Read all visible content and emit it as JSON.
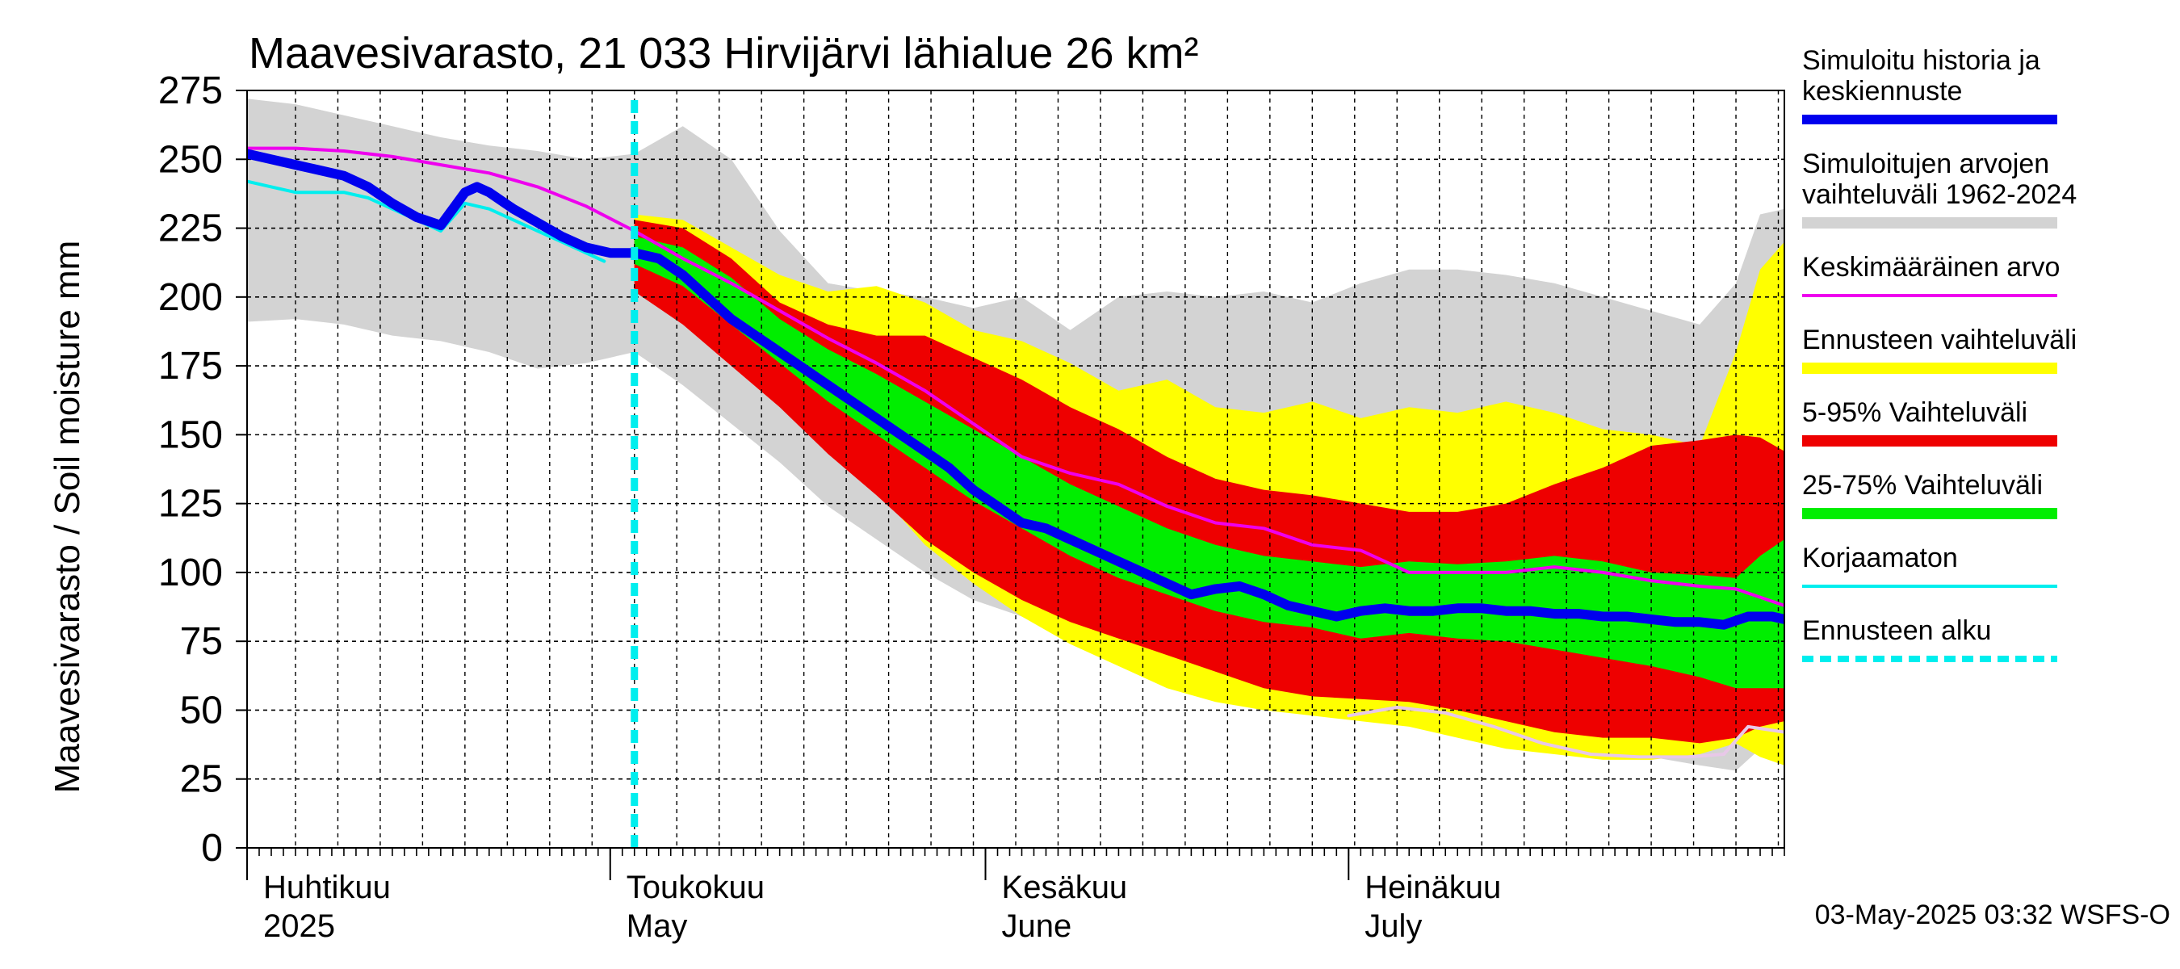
{
  "chart_data": {
    "type": "area",
    "title": "Maavesivarasto, 21 033 Hirvijärvi lähialue 26 km²",
    "ylabel": "Maavesivarasto / Soil moisture   mm",
    "ylim": [
      0,
      275
    ],
    "yticks": [
      0,
      25,
      50,
      75,
      100,
      125,
      150,
      175,
      200,
      225,
      250,
      275
    ],
    "xrange_days": [
      0,
      127
    ],
    "month_labels": [
      {
        "day": 0,
        "fi": "Huhtikuu",
        "en": "2025"
      },
      {
        "day": 30,
        "fi": "Toukokuu",
        "en": "May"
      },
      {
        "day": 61,
        "fi": "Kesäkuu",
        "en": "June"
      },
      {
        "day": 91,
        "fi": "Heinäkuu",
        "en": "July"
      }
    ],
    "forecast_start_day": 32,
    "timestamp": "03-May-2025 03:32 WSFS-O",
    "legend": [
      {
        "key": "history",
        "label": [
          "Simuloitu historia ja",
          "keskiennuste"
        ],
        "color": "#0000ee",
        "style": "thick"
      },
      {
        "key": "range_hist",
        "label": [
          "Simuloitujen arvojen",
          "vaihteluväli 1962-2024"
        ],
        "color": "#d3d3d3",
        "style": "band"
      },
      {
        "key": "mean",
        "label": [
          "Keskimääräinen arvo"
        ],
        "color": "#ee00ee",
        "style": "line"
      },
      {
        "key": "fc_range",
        "label": [
          "Ennusteen vaihteluväli"
        ],
        "color": "#ffff00",
        "style": "band"
      },
      {
        "key": "p5_95",
        "label": [
          "5-95% Vaihteluväli"
        ],
        "color": "#ee0000",
        "style": "band"
      },
      {
        "key": "p25_75",
        "label": [
          "25-75% Vaihteluväli"
        ],
        "color": "#00ee00",
        "style": "band"
      },
      {
        "key": "uncorrected",
        "label": [
          "Korjaamaton"
        ],
        "color": "#00eeee",
        "style": "line"
      },
      {
        "key": "fc_start",
        "label": [
          "Ennusteen alku"
        ],
        "color": "#00eeee",
        "style": "dashed"
      }
    ],
    "series": {
      "hist_range": {
        "x": [
          0,
          4,
          8,
          12,
          16,
          20,
          24,
          28,
          32,
          36,
          40,
          44,
          48,
          52,
          56,
          60,
          64,
          68,
          72,
          76,
          80,
          84,
          88,
          92,
          96,
          100,
          104,
          108,
          112,
          116,
          120,
          123,
          125,
          127
        ],
        "low": [
          191,
          192,
          190,
          186,
          184,
          180,
          174,
          176,
          180,
          168,
          154,
          140,
          124,
          112,
          100,
          90,
          84,
          78,
          72,
          66,
          60,
          56,
          52,
          50,
          48,
          46,
          42,
          38,
          35,
          33,
          30,
          28,
          36,
          40
        ],
        "high": [
          272,
          270,
          266,
          262,
          258,
          255,
          253,
          250,
          252,
          262,
          250,
          224,
          205,
          202,
          200,
          196,
          200,
          188,
          200,
          202,
          200,
          202,
          198,
          205,
          210,
          210,
          208,
          205,
          200,
          195,
          190,
          205,
          230,
          232
        ]
      },
      "fc_range": {
        "x": [
          32,
          36,
          40,
          44,
          48,
          52,
          56,
          60,
          64,
          68,
          72,
          76,
          80,
          84,
          88,
          92,
          96,
          100,
          104,
          108,
          112,
          116,
          120,
          123,
          125,
          127
        ],
        "low": [
          205,
          195,
          180,
          164,
          148,
          130,
          110,
          96,
          84,
          74,
          66,
          58,
          53,
          50,
          48,
          46,
          44,
          40,
          36,
          34,
          32,
          32,
          34,
          38,
          33,
          30
        ],
        "high": [
          230,
          228,
          218,
          208,
          202,
          204,
          198,
          188,
          184,
          176,
          166,
          170,
          160,
          158,
          162,
          156,
          160,
          158,
          162,
          158,
          152,
          150,
          146,
          180,
          210,
          220
        ]
      },
      "p5_95": {
        "x": [
          32,
          36,
          40,
          44,
          48,
          52,
          56,
          60,
          64,
          68,
          72,
          76,
          80,
          84,
          88,
          92,
          96,
          100,
          104,
          108,
          112,
          116,
          120,
          123,
          125,
          127
        ],
        "low": [
          202,
          190,
          175,
          160,
          143,
          128,
          112,
          100,
          90,
          82,
          76,
          70,
          64,
          58,
          55,
          54,
          53,
          50,
          46,
          42,
          40,
          40,
          38,
          40,
          44,
          46
        ],
        "high": [
          228,
          225,
          214,
          198,
          190,
          186,
          186,
          178,
          170,
          160,
          152,
          142,
          134,
          130,
          128,
          125,
          122,
          122,
          125,
          132,
          138,
          146,
          148,
          150,
          149,
          144
        ]
      },
      "p25_75": {
        "x": [
          32,
          36,
          40,
          44,
          48,
          52,
          56,
          60,
          64,
          68,
          72,
          76,
          80,
          84,
          88,
          92,
          96,
          100,
          104,
          108,
          112,
          116,
          120,
          123,
          125,
          127
        ],
        "low": [
          212,
          204,
          190,
          176,
          162,
          150,
          138,
          126,
          116,
          106,
          98,
          92,
          86,
          82,
          80,
          76,
          78,
          76,
          75,
          72,
          69,
          66,
          62,
          58,
          58,
          58
        ],
        "high": [
          222,
          218,
          207,
          192,
          181,
          172,
          162,
          152,
          142,
          132,
          124,
          116,
          110,
          106,
          104,
          102,
          104,
          103,
          104,
          106,
          104,
          100,
          99,
          98,
          106,
          112
        ]
      },
      "mean": {
        "x": [
          0,
          4,
          8,
          12,
          16,
          20,
          24,
          28,
          32,
          36,
          40,
          44,
          48,
          52,
          56,
          60,
          64,
          68,
          72,
          76,
          80,
          84,
          88,
          92,
          96,
          100,
          104,
          108,
          112,
          116,
          120,
          123,
          125,
          127
        ],
        "y": [
          254,
          254,
          253,
          251,
          248,
          245,
          240,
          233,
          224,
          214,
          205,
          195,
          185,
          176,
          166,
          154,
          142,
          136,
          132,
          124,
          118,
          116,
          110,
          108,
          100,
          100,
          100,
          102,
          100,
          97,
          95,
          94,
          91,
          88
        ]
      },
      "history": {
        "x": [
          0,
          2,
          4,
          6,
          8,
          10,
          12,
          14,
          16,
          17,
          18,
          19,
          20,
          22,
          24,
          26,
          28,
          30,
          32,
          34,
          36,
          38,
          40,
          42,
          44,
          46,
          48,
          50,
          52,
          54,
          56,
          58,
          60,
          62,
          64,
          66,
          68,
          70,
          72,
          74,
          76,
          78,
          80,
          82,
          84,
          86,
          88,
          90,
          92,
          94,
          96,
          98,
          100,
          102,
          104,
          106,
          108,
          110,
          112,
          114,
          116,
          118,
          120,
          122,
          124,
          126,
          127
        ],
        "y": [
          252,
          250,
          248,
          246,
          244,
          240,
          234,
          229,
          226,
          232,
          238,
          240,
          238,
          232,
          227,
          222,
          218,
          216,
          216,
          214,
          208,
          200,
          192,
          186,
          180,
          174,
          168,
          162,
          156,
          150,
          144,
          138,
          130,
          124,
          118,
          116,
          112,
          108,
          104,
          100,
          96,
          92,
          94,
          95,
          92,
          88,
          86,
          84,
          86,
          87,
          86,
          86,
          87,
          87,
          86,
          86,
          85,
          85,
          84,
          84,
          83,
          82,
          82,
          81,
          84,
          84,
          83
        ]
      },
      "uncorrected": {
        "x": [
          0,
          2,
          4,
          6,
          8,
          10,
          12,
          14,
          16,
          18,
          20,
          22,
          24,
          26,
          28,
          29.5
        ],
        "y": [
          242,
          240,
          238,
          238,
          238,
          236,
          232,
          228,
          224,
          234,
          232,
          228,
          224,
          220,
          216,
          213
        ]
      },
      "minline": {
        "x": [
          91,
          95,
          99,
          103,
          107,
          111,
          115,
          119,
          122,
          124,
          127
        ],
        "y": [
          48,
          51,
          49,
          44,
          38,
          34,
          33,
          33,
          34,
          44,
          42
        ]
      }
    }
  }
}
